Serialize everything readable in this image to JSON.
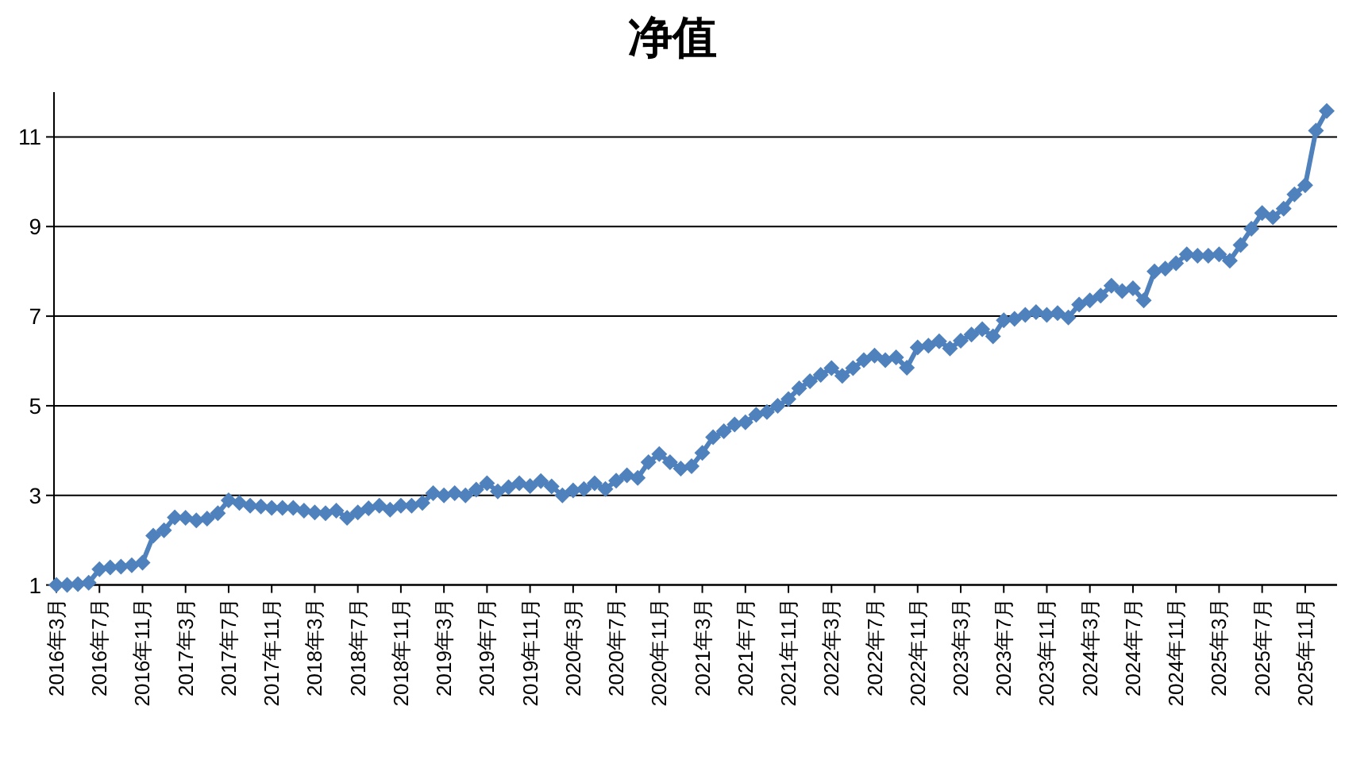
{
  "chart_data": {
    "type": "line",
    "title": "净值",
    "categories": [
      "2016年3月",
      null,
      null,
      null,
      "2016年7月",
      null,
      null,
      null,
      "2016年11月",
      null,
      null,
      null,
      "2017年3月",
      null,
      null,
      null,
      "2017年7月",
      null,
      null,
      null,
      "2017年11月",
      null,
      null,
      null,
      "2018年3月",
      null,
      null,
      null,
      "2018年7月",
      null,
      null,
      null,
      "2018年11月",
      null,
      null,
      null,
      "2019年3月",
      null,
      null,
      null,
      "2019年7月",
      null,
      null,
      null,
      "2019年11月",
      null,
      null,
      null,
      "2020年3月",
      null,
      null,
      null,
      "2020年7月",
      null,
      null,
      null,
      "2020年11月",
      null,
      null,
      null,
      "2021年3月",
      null,
      null,
      null,
      "2021年7月",
      null,
      null,
      null,
      "2021年11月",
      null,
      null,
      null,
      "2022年3月",
      null,
      null,
      null,
      "2022年7月",
      null,
      null,
      null,
      "2022年11月",
      null,
      null,
      null,
      "2023年3月",
      null,
      null,
      null,
      "2023年7月",
      null,
      null,
      null,
      "2023年11月",
      null,
      null,
      null,
      "2024年3月",
      null,
      null,
      null,
      "2024年7月",
      null,
      null,
      null,
      "2024年11月",
      null,
      null,
      null,
      "2025年3月",
      null,
      null,
      null,
      "2025年7月",
      null,
      null,
      null,
      "2025年11月",
      null,
      null
    ],
    "values": [
      1.0,
      1.0,
      1.02,
      1.05,
      1.35,
      1.39,
      1.41,
      1.44,
      1.5,
      2.1,
      2.22,
      2.51,
      2.5,
      2.44,
      2.48,
      2.6,
      2.89,
      2.83,
      2.77,
      2.75,
      2.72,
      2.72,
      2.72,
      2.66,
      2.62,
      2.6,
      2.66,
      2.5,
      2.62,
      2.71,
      2.77,
      2.68,
      2.77,
      2.77,
      2.83,
      3.05,
      3.0,
      3.05,
      3.0,
      3.13,
      3.27,
      3.09,
      3.18,
      3.27,
      3.21,
      3.32,
      3.2,
      3.0,
      3.11,
      3.14,
      3.27,
      3.14,
      3.33,
      3.45,
      3.39,
      3.74,
      3.92,
      3.74,
      3.6,
      3.65,
      3.95,
      4.3,
      4.43,
      4.58,
      4.63,
      4.8,
      4.86,
      5.0,
      5.15,
      5.39,
      5.55,
      5.69,
      5.84,
      5.67,
      5.84,
      6.02,
      6.12,
      6.02,
      6.08,
      5.85,
      6.3,
      6.34,
      6.44,
      6.28,
      6.45,
      6.59,
      6.71,
      6.55,
      6.91,
      6.94,
      7.03,
      7.09,
      7.03,
      7.07,
      6.97,
      7.26,
      7.35,
      7.46,
      7.68,
      7.56,
      7.62,
      7.35,
      8.0,
      8.06,
      8.18,
      8.38,
      8.35,
      8.35,
      8.38,
      8.24,
      8.59,
      8.95,
      9.3,
      9.21,
      9.4,
      9.72,
      9.92,
      11.14,
      11.58
    ],
    "color": "#4f81bd",
    "ylim": [
      1,
      12
    ],
    "yticks": [
      1,
      3,
      5,
      7,
      9,
      11
    ],
    "grid": "y",
    "marker": "diamond",
    "line_style": "solid"
  }
}
